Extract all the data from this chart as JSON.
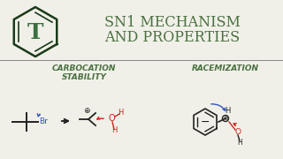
{
  "title_line1": "SN1 MECHANISM",
  "title_line2": "AND PROPERTIES",
  "title_color": "#4a7040",
  "title_fontsize": 11.5,
  "subtitle1": "CARBOCATION",
  "subtitle2": "STABILITY",
  "subtitle3": "RACEMIZATION",
  "subtitle_color": "#4a7040",
  "subtitle_fontsize": 6.5,
  "bg_color": "#f0f0e8",
  "logo_color": "#1a3a1a",
  "chem_color_gray": "#222222",
  "chem_color_blue": "#3355bb",
  "chem_color_red": "#cc2222",
  "line_color": "#888888"
}
